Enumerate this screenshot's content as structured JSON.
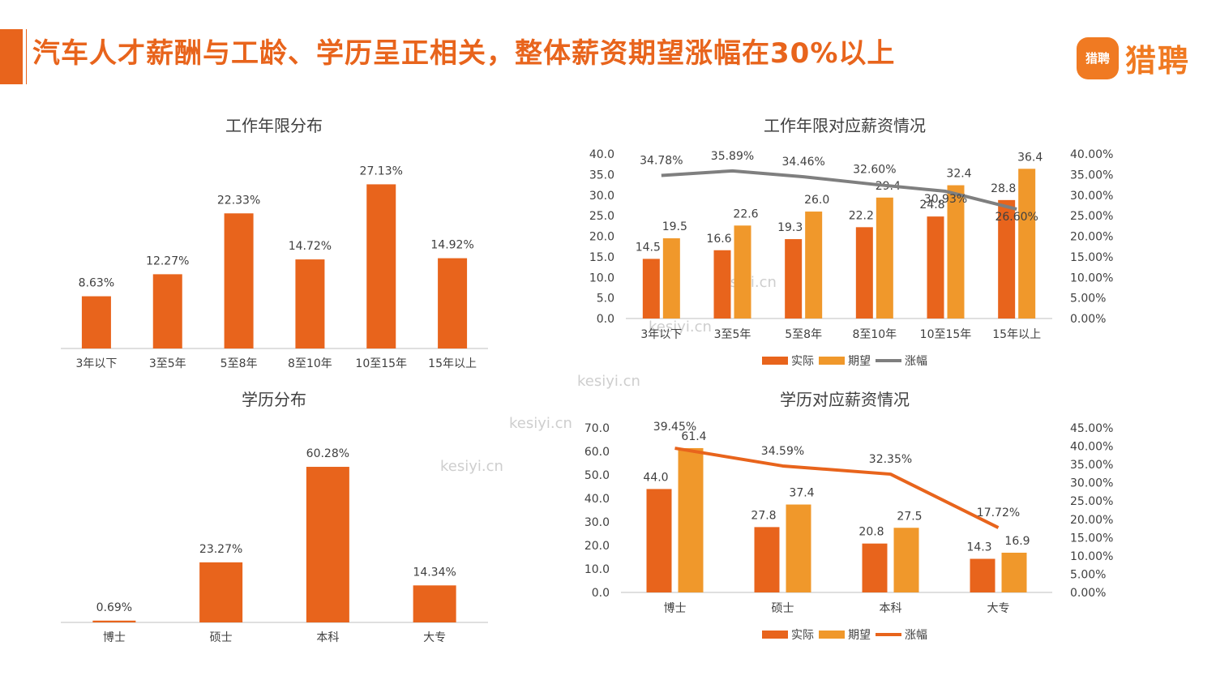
{
  "header": {
    "title": "汽车人才薪酬与工龄、学历呈正相关，整体薪资期望涨幅在30%以上",
    "logo_badge": "猎聘",
    "logo_text": "猎聘"
  },
  "watermarks": [
    "kesiyi.cn",
    "kesiyi.cn",
    "kesiyi.cn",
    "kesiyi.cn",
    "kesiyi.cn"
  ],
  "colors": {
    "accent": "#E8641C",
    "actual": "#E8641C",
    "expected": "#F0982B",
    "growth_gray": "#7F7F7F",
    "growth_orange": "#E8641C"
  },
  "chart_data": [
    {
      "type": "bar",
      "title": "工作年限分布",
      "categories": [
        "3年以下",
        "3至5年",
        "5至8年",
        "8至10年",
        "10至15年",
        "15年以上"
      ],
      "values": [
        8.63,
        12.27,
        22.33,
        14.72,
        27.13,
        14.92
      ],
      "labels": [
        "8.63%",
        "12.27%",
        "22.33%",
        "14.72%",
        "27.13%",
        "14.92%"
      ],
      "ylim": [
        0,
        30
      ],
      "grid": false
    },
    {
      "type": "bar",
      "title": "学历分布",
      "categories": [
        "博士",
        "硕士",
        "本科",
        "大专"
      ],
      "values": [
        0.69,
        23.27,
        60.28,
        14.34
      ],
      "labels": [
        "0.69%",
        "23.27%",
        "60.28%",
        "14.34%"
      ],
      "ylim": [
        0,
        65
      ],
      "grid": false
    },
    {
      "type": "bar",
      "title": "工作年限对应薪资情况",
      "categories": [
        "3年以下",
        "3至5年",
        "5至8年",
        "8至10年",
        "10至15年",
        "15年以上"
      ],
      "series": [
        {
          "name": "实际",
          "values": [
            14.5,
            16.6,
            19.3,
            22.2,
            24.8,
            28.8
          ],
          "labels": [
            "14.5",
            "16.6",
            "19.3",
            "22.2",
            "24.8",
            "28.8"
          ]
        },
        {
          "name": "期望",
          "values": [
            19.5,
            22.6,
            26.0,
            29.4,
            32.4,
            36.4
          ],
          "labels": [
            "19.5",
            "22.6",
            "26.0",
            "29.4",
            "32.4",
            "36.4"
          ]
        },
        {
          "name": "涨幅",
          "type": "line",
          "axis": "right",
          "values": [
            34.78,
            35.89,
            34.46,
            32.6,
            30.93,
            26.6
          ],
          "labels": [
            "34.78%",
            "35.89%",
            "34.46%",
            "32.60%",
            "30.93%",
            "26.60%"
          ]
        }
      ],
      "ylim": [
        0,
        40
      ],
      "y_ticks": [
        "0.0",
        "5.0",
        "10.0",
        "15.0",
        "20.0",
        "25.0",
        "30.0",
        "35.0",
        "40.0"
      ],
      "y2lim": [
        0,
        40
      ],
      "y2_ticks": [
        "0.00%",
        "5.00%",
        "10.00%",
        "15.00%",
        "20.00%",
        "25.00%",
        "30.00%",
        "35.00%",
        "40.00%"
      ],
      "legend": "bottom",
      "grid": false
    },
    {
      "type": "bar",
      "title": "学历对应薪资情况",
      "categories": [
        "博士",
        "硕士",
        "本科",
        "大专"
      ],
      "series": [
        {
          "name": "实际",
          "values": [
            44.0,
            27.8,
            20.8,
            14.3
          ],
          "labels": [
            "44.0",
            "27.8",
            "20.8",
            "14.3"
          ]
        },
        {
          "name": "期望",
          "values": [
            61.4,
            37.4,
            27.5,
            16.9
          ],
          "labels": [
            "61.4",
            "37.4",
            "27.5",
            "16.9"
          ]
        },
        {
          "name": "涨幅",
          "type": "line",
          "axis": "right",
          "values": [
            39.45,
            34.59,
            32.35,
            17.72
          ],
          "labels": [
            "39.45%",
            "34.59%",
            "32.35%",
            "17.72%"
          ]
        }
      ],
      "ylim": [
        0,
        70
      ],
      "y_ticks": [
        "0.0",
        "10.0",
        "20.0",
        "30.0",
        "40.0",
        "50.0",
        "60.0",
        "70.0"
      ],
      "y2lim": [
        0,
        45
      ],
      "y2_ticks": [
        "0.00%",
        "5.00%",
        "10.00%",
        "15.00%",
        "20.00%",
        "25.00%",
        "30.00%",
        "35.00%",
        "40.00%",
        "45.00%"
      ],
      "legend": "bottom",
      "grid": false
    }
  ]
}
